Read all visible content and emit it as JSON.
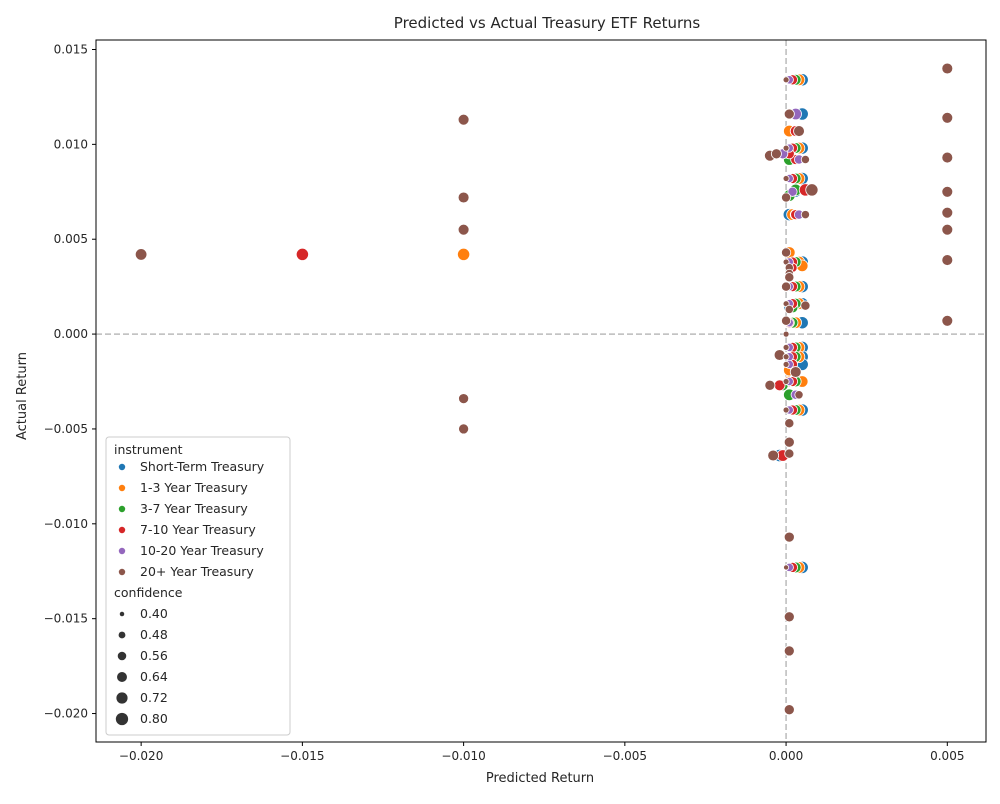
{
  "chart_data": {
    "type": "scatter",
    "title": "Predicted vs Actual Treasury ETF Returns",
    "xlabel": "Predicted Return",
    "ylabel": "Actual Return",
    "xlim": [
      -0.0214,
      0.0062
    ],
    "ylim": [
      -0.0215,
      0.0155
    ],
    "xticks": [
      -0.02,
      -0.015,
      -0.01,
      -0.005,
      0.0,
      0.005
    ],
    "xtick_labels": [
      "−0.020",
      "−0.015",
      "−0.010",
      "−0.005",
      "0.000",
      "0.005"
    ],
    "yticks": [
      -0.02,
      -0.015,
      -0.01,
      -0.005,
      0.0,
      0.005,
      0.01,
      0.015
    ],
    "ytick_labels": [
      "−0.020",
      "−0.015",
      "−0.010",
      "−0.005",
      "0.000",
      "0.005",
      "0.010",
      "0.015"
    ],
    "grid": false,
    "reference_lines": {
      "x": 0.0,
      "y": 0.0,
      "style": "dashed",
      "color": "#bbbbbb"
    },
    "legend": {
      "placement": "lower-left",
      "hue_title": "instrument",
      "size_title": "confidence",
      "size_entries": [
        "0.40",
        "0.48",
        "0.56",
        "0.64",
        "0.72",
        "0.80"
      ]
    },
    "series": [
      {
        "name": "Short-Term Treasury",
        "color": "#1f77b4",
        "points": [
          [
            0.0005,
            0.0134,
            0.8
          ],
          [
            0.0005,
            0.0116,
            0.8
          ],
          [
            0.0005,
            0.0098,
            0.8
          ],
          [
            0.0005,
            0.0082,
            0.8
          ],
          [
            0.0001,
            0.0063,
            0.8
          ],
          [
            0.0005,
            0.0038,
            0.8
          ],
          [
            0.0005,
            0.0025,
            0.8
          ],
          [
            0.0005,
            0.0016,
            0.8
          ],
          [
            0.0005,
            0.0006,
            0.8
          ],
          [
            0.0005,
            -0.0007,
            0.8
          ],
          [
            0.0005,
            -0.0012,
            0.8
          ],
          [
            0.0005,
            -0.0016,
            0.8
          ],
          [
            0.0005,
            -0.0025,
            0.8
          ],
          [
            0.0005,
            -0.004,
            0.8
          ],
          [
            0.0005,
            -0.0123,
            0.8
          ],
          [
            0.0002,
            0.0092,
            0.7
          ],
          [
            0.0001,
            0.0014,
            0.7
          ],
          [
            0.0003,
            0.0075,
            0.7
          ],
          [
            -0.0002,
            -0.0064,
            0.8
          ]
        ]
      },
      {
        "name": "1-3 Year Treasury",
        "color": "#ff7f0e",
        "points": [
          [
            -0.01,
            0.0042,
            0.8
          ],
          [
            0.0004,
            0.0134,
            0.75
          ],
          [
            0.0001,
            0.0107,
            0.75
          ],
          [
            0.0004,
            0.0098,
            0.75
          ],
          [
            0.0004,
            0.0082,
            0.75
          ],
          [
            0.0002,
            0.0063,
            0.75
          ],
          [
            0.0004,
            0.0038,
            0.75
          ],
          [
            0.0005,
            0.0036,
            0.75
          ],
          [
            0.0001,
            0.0043,
            0.75
          ],
          [
            0.0004,
            0.0025,
            0.75
          ],
          [
            0.0004,
            0.0016,
            0.75
          ],
          [
            0.0003,
            0.0006,
            0.75
          ],
          [
            0.0004,
            -0.0007,
            0.75
          ],
          [
            0.0004,
            -0.0012,
            0.75
          ],
          [
            0.0001,
            -0.0019,
            0.75
          ],
          [
            0.0005,
            -0.0025,
            0.75
          ],
          [
            0.0004,
            -0.004,
            0.75
          ],
          [
            0.0004,
            -0.0123,
            0.75
          ],
          [
            0.0001,
            0.0095,
            0.8
          ],
          [
            0.0001,
            -0.0025,
            0.7
          ]
        ]
      },
      {
        "name": "3-7 Year Treasury",
        "color": "#2ca02c",
        "points": [
          [
            0.0003,
            0.0134,
            0.7
          ],
          [
            0.0003,
            0.0116,
            0.7
          ],
          [
            0.0003,
            0.0098,
            0.7
          ],
          [
            0.0003,
            0.0082,
            0.7
          ],
          [
            0.0003,
            0.0076,
            0.75
          ],
          [
            0.0001,
            0.0073,
            0.75
          ],
          [
            0.0003,
            0.0063,
            0.7
          ],
          [
            0.0003,
            0.0038,
            0.7
          ],
          [
            0.0003,
            0.0025,
            0.7
          ],
          [
            0.0003,
            0.0016,
            0.7
          ],
          [
            0.0002,
            0.0006,
            0.7
          ],
          [
            0.0003,
            -0.0007,
            0.7
          ],
          [
            0.0003,
            -0.0012,
            0.7
          ],
          [
            0.0003,
            -0.0025,
            0.7
          ],
          [
            0.0001,
            -0.0032,
            0.75
          ],
          [
            0.0003,
            -0.004,
            0.7
          ],
          [
            0.0003,
            -0.0123,
            0.7
          ],
          [
            0.0001,
            0.0092,
            0.75
          ],
          [
            -0.0001,
            -0.0027,
            0.7
          ],
          [
            0.0002,
            0.0014,
            0.7
          ]
        ]
      },
      {
        "name": "7-10 Year Treasury",
        "color": "#d62728",
        "points": [
          [
            -0.015,
            0.0042,
            0.8
          ],
          [
            0.0002,
            0.0134,
            0.65
          ],
          [
            0.0002,
            0.0116,
            0.65
          ],
          [
            0.0003,
            0.0107,
            0.7
          ],
          [
            0.0002,
            0.0098,
            0.65
          ],
          [
            0.0003,
            0.0092,
            0.65
          ],
          [
            0.0002,
            0.0082,
            0.65
          ],
          [
            0.0006,
            0.0076,
            0.8
          ],
          [
            0.0003,
            0.0063,
            0.65
          ],
          [
            0.0002,
            0.0038,
            0.65
          ],
          [
            0.0002,
            0.0035,
            0.6
          ],
          [
            0.0002,
            0.0025,
            0.65
          ],
          [
            0.0002,
            0.0016,
            0.65
          ],
          [
            0.0001,
            0.0006,
            0.65
          ],
          [
            0.0002,
            -0.0007,
            0.65
          ],
          [
            0.0002,
            -0.0012,
            0.65
          ],
          [
            0.0002,
            -0.0016,
            0.65
          ],
          [
            0.0002,
            -0.0025,
            0.65
          ],
          [
            -0.0002,
            -0.0027,
            0.7
          ],
          [
            0.0002,
            -0.004,
            0.65
          ],
          [
            0.0002,
            -0.0123,
            0.65
          ],
          [
            -0.0001,
            -0.0064,
            0.75
          ],
          [
            0.0001,
            0.0095,
            0.65
          ]
        ]
      },
      {
        "name": "10-20 Year Treasury",
        "color": "#9467bd",
        "points": [
          [
            0.0001,
            0.0134,
            0.55
          ],
          [
            0.0003,
            0.0116,
            0.75
          ],
          [
            0.0001,
            0.0098,
            0.55
          ],
          [
            0.0001,
            0.0082,
            0.55
          ],
          [
            0.0004,
            0.0092,
            0.6
          ],
          [
            0.0004,
            0.0063,
            0.6
          ],
          [
            0.0001,
            0.0038,
            0.55
          ],
          [
            0.0001,
            0.0025,
            0.55
          ],
          [
            0.0001,
            0.0016,
            0.55
          ],
          [
            0.0001,
            0.0006,
            0.55
          ],
          [
            0.0001,
            -0.0007,
            0.55
          ],
          [
            0.0001,
            -0.0012,
            0.55
          ],
          [
            0.0001,
            -0.0016,
            0.55
          ],
          [
            0.0001,
            -0.0025,
            0.55
          ],
          [
            0.0003,
            -0.0032,
            0.6
          ],
          [
            0.0001,
            -0.004,
            0.55
          ],
          [
            0.0001,
            -0.0123,
            0.55
          ],
          [
            -0.0001,
            0.0095,
            0.65
          ],
          [
            0.0002,
            0.0075,
            0.6
          ]
        ]
      },
      {
        "name": "20+ Year Treasury",
        "color": "#8c564b",
        "points": [
          [
            -0.02,
            0.0042,
            0.75
          ],
          [
            -0.01,
            0.0113,
            0.7
          ],
          [
            -0.01,
            0.0072,
            0.7
          ],
          [
            -0.01,
            0.0055,
            0.7
          ],
          [
            -0.01,
            -0.0034,
            0.65
          ],
          [
            -0.01,
            -0.005,
            0.65
          ],
          [
            0.005,
            0.014,
            0.7
          ],
          [
            0.005,
            0.0114,
            0.7
          ],
          [
            0.005,
            0.0093,
            0.7
          ],
          [
            0.005,
            0.0075,
            0.7
          ],
          [
            0.005,
            0.0064,
            0.7
          ],
          [
            0.005,
            0.0055,
            0.7
          ],
          [
            0.005,
            0.0039,
            0.7
          ],
          [
            0.005,
            0.0007,
            0.7
          ],
          [
            -0.0005,
            0.0094,
            0.7
          ],
          [
            -0.0003,
            0.0095,
            0.65
          ],
          [
            0.0008,
            0.0076,
            0.8
          ],
          [
            0.0,
            0.0072,
            0.6
          ],
          [
            0.0001,
            0.0116,
            0.65
          ],
          [
            0.0004,
            0.0107,
            0.7
          ],
          [
            0.0006,
            0.0092,
            0.55
          ],
          [
            0.0006,
            0.0063,
            0.55
          ],
          [
            0.0,
            0.0134,
            0.45
          ],
          [
            0.0,
            0.0098,
            0.45
          ],
          [
            0.0,
            0.0082,
            0.45
          ],
          [
            0.0,
            0.0043,
            0.6
          ],
          [
            0.0,
            0.0038,
            0.45
          ],
          [
            0.0001,
            0.0035,
            0.55
          ],
          [
            0.0001,
            0.0032,
            0.55
          ],
          [
            0.0001,
            0.003,
            0.6
          ],
          [
            0.0,
            0.0025,
            0.6
          ],
          [
            0.0,
            0.0016,
            0.45
          ],
          [
            0.0006,
            0.0015,
            0.6
          ],
          [
            0.0001,
            0.0013,
            0.55
          ],
          [
            0.0,
            0.0007,
            0.6
          ],
          [
            0.0,
            0.0,
            0.45
          ],
          [
            0.0,
            -0.0007,
            0.45
          ],
          [
            -0.0002,
            -0.0011,
            0.7
          ],
          [
            0.0,
            -0.0012,
            0.45
          ],
          [
            0.0,
            -0.0016,
            0.45
          ],
          [
            0.0003,
            -0.002,
            0.7
          ],
          [
            0.0,
            -0.0025,
            0.45
          ],
          [
            -0.0005,
            -0.0027,
            0.65
          ],
          [
            0.0004,
            -0.0032,
            0.55
          ],
          [
            0.0,
            -0.004,
            0.45
          ],
          [
            0.0001,
            -0.0047,
            0.6
          ],
          [
            0.0001,
            -0.0057,
            0.65
          ],
          [
            0.0001,
            -0.0063,
            0.6
          ],
          [
            -0.0004,
            -0.0064,
            0.7
          ],
          [
            0.0001,
            -0.0107,
            0.65
          ],
          [
            0.0,
            -0.0123,
            0.42
          ],
          [
            0.0001,
            -0.0149,
            0.65
          ],
          [
            0.0001,
            -0.0167,
            0.65
          ],
          [
            0.0001,
            -0.0198,
            0.65
          ]
        ]
      }
    ]
  }
}
